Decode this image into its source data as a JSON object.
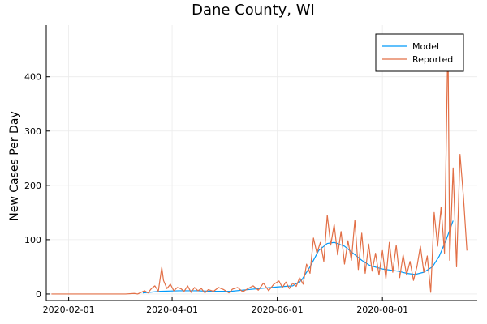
{
  "chart_data": {
    "type": "line",
    "title": "Dane County, WI",
    "xlabel": "",
    "ylabel": "New Cases Per Day",
    "x_type": "date",
    "xlim": [
      "2020-01-19",
      "2020-09-25"
    ],
    "ylim": [
      -12,
      495
    ],
    "x_ticks": [
      "2020-02-01",
      "2020-04-01",
      "2020-06-01",
      "2020-08-01"
    ],
    "y_ticks": [
      0,
      100,
      200,
      300,
      400
    ],
    "grid": true,
    "legend_position": "top-right",
    "colors": {
      "model": "#009AFA",
      "reported": "#E26F46",
      "axis": "#000000",
      "grid": "#EBEBEB"
    },
    "series": [
      {
        "name": "Model",
        "points": [
          [
            "2020-03-15",
            2
          ],
          [
            "2020-03-25",
            5
          ],
          [
            "2020-04-05",
            6
          ],
          [
            "2020-04-15",
            6
          ],
          [
            "2020-04-25",
            5
          ],
          [
            "2020-05-05",
            5
          ],
          [
            "2020-05-15",
            8
          ],
          [
            "2020-05-25",
            11
          ],
          [
            "2020-06-01",
            13
          ],
          [
            "2020-06-10",
            15
          ],
          [
            "2020-06-15",
            25
          ],
          [
            "2020-06-20",
            50
          ],
          [
            "2020-06-25",
            80
          ],
          [
            "2020-06-30",
            93
          ],
          [
            "2020-07-04",
            95
          ],
          [
            "2020-07-10",
            88
          ],
          [
            "2020-07-15",
            75
          ],
          [
            "2020-07-20",
            62
          ],
          [
            "2020-07-25",
            52
          ],
          [
            "2020-08-01",
            46
          ],
          [
            "2020-08-10",
            42
          ],
          [
            "2020-08-15",
            38
          ],
          [
            "2020-08-20",
            36
          ],
          [
            "2020-08-25",
            40
          ],
          [
            "2020-08-30",
            50
          ],
          [
            "2020-09-03",
            70
          ],
          [
            "2020-09-07",
            100
          ],
          [
            "2020-09-11",
            135
          ]
        ]
      },
      {
        "name": "Reported",
        "points": [
          [
            "2020-01-22",
            0
          ],
          [
            "2020-02-10",
            0
          ],
          [
            "2020-03-05",
            0
          ],
          [
            "2020-03-10",
            1
          ],
          [
            "2020-03-12",
            0
          ],
          [
            "2020-03-14",
            3
          ],
          [
            "2020-03-16",
            6
          ],
          [
            "2020-03-18",
            2
          ],
          [
            "2020-03-20",
            10
          ],
          [
            "2020-03-22",
            15
          ],
          [
            "2020-03-24",
            5
          ],
          [
            "2020-03-26",
            49
          ],
          [
            "2020-03-27",
            25
          ],
          [
            "2020-03-29",
            10
          ],
          [
            "2020-03-31",
            18
          ],
          [
            "2020-04-02",
            6
          ],
          [
            "2020-04-04",
            12
          ],
          [
            "2020-04-06",
            10
          ],
          [
            "2020-04-08",
            5
          ],
          [
            "2020-04-10",
            15
          ],
          [
            "2020-04-12",
            3
          ],
          [
            "2020-04-14",
            12
          ],
          [
            "2020-04-16",
            6
          ],
          [
            "2020-04-18",
            10
          ],
          [
            "2020-04-20",
            2
          ],
          [
            "2020-04-22",
            8
          ],
          [
            "2020-04-25",
            5
          ],
          [
            "2020-04-28",
            12
          ],
          [
            "2020-05-01",
            8
          ],
          [
            "2020-05-04",
            2
          ],
          [
            "2020-05-06",
            9
          ],
          [
            "2020-05-09",
            12
          ],
          [
            "2020-05-12",
            4
          ],
          [
            "2020-05-15",
            10
          ],
          [
            "2020-05-18",
            15
          ],
          [
            "2020-05-21",
            7
          ],
          [
            "2020-05-24",
            20
          ],
          [
            "2020-05-27",
            6
          ],
          [
            "2020-05-30",
            18
          ],
          [
            "2020-06-02",
            24
          ],
          [
            "2020-06-04",
            12
          ],
          [
            "2020-06-06",
            22
          ],
          [
            "2020-06-08",
            10
          ],
          [
            "2020-06-10",
            20
          ],
          [
            "2020-06-12",
            14
          ],
          [
            "2020-06-14",
            30
          ],
          [
            "2020-06-16",
            18
          ],
          [
            "2020-06-18",
            55
          ],
          [
            "2020-06-20",
            38
          ],
          [
            "2020-06-22",
            103
          ],
          [
            "2020-06-24",
            75
          ],
          [
            "2020-06-26",
            95
          ],
          [
            "2020-06-28",
            60
          ],
          [
            "2020-06-30",
            145
          ],
          [
            "2020-07-02",
            90
          ],
          [
            "2020-07-04",
            128
          ],
          [
            "2020-07-06",
            72
          ],
          [
            "2020-07-08",
            115
          ],
          [
            "2020-07-10",
            55
          ],
          [
            "2020-07-12",
            98
          ],
          [
            "2020-07-14",
            62
          ],
          [
            "2020-07-16",
            136
          ],
          [
            "2020-07-18",
            45
          ],
          [
            "2020-07-20",
            112
          ],
          [
            "2020-07-22",
            38
          ],
          [
            "2020-07-24",
            92
          ],
          [
            "2020-07-26",
            42
          ],
          [
            "2020-07-28",
            75
          ],
          [
            "2020-07-30",
            35
          ],
          [
            "2020-08-01",
            80
          ],
          [
            "2020-08-03",
            28
          ],
          [
            "2020-08-05",
            95
          ],
          [
            "2020-08-07",
            40
          ],
          [
            "2020-08-09",
            90
          ],
          [
            "2020-08-11",
            30
          ],
          [
            "2020-08-13",
            72
          ],
          [
            "2020-08-15",
            35
          ],
          [
            "2020-08-17",
            60
          ],
          [
            "2020-08-19",
            25
          ],
          [
            "2020-08-21",
            50
          ],
          [
            "2020-08-23",
            88
          ],
          [
            "2020-08-25",
            40
          ],
          [
            "2020-08-27",
            70
          ],
          [
            "2020-08-29",
            3
          ],
          [
            "2020-08-31",
            150
          ],
          [
            "2020-09-02",
            88
          ],
          [
            "2020-09-04",
            160
          ],
          [
            "2020-09-06",
            75
          ],
          [
            "2020-09-08",
            478
          ],
          [
            "2020-09-09",
            62
          ],
          [
            "2020-09-11",
            232
          ],
          [
            "2020-09-13",
            50
          ],
          [
            "2020-09-15",
            257
          ],
          [
            "2020-09-17",
            178
          ],
          [
            "2020-09-19",
            80
          ]
        ]
      }
    ]
  }
}
